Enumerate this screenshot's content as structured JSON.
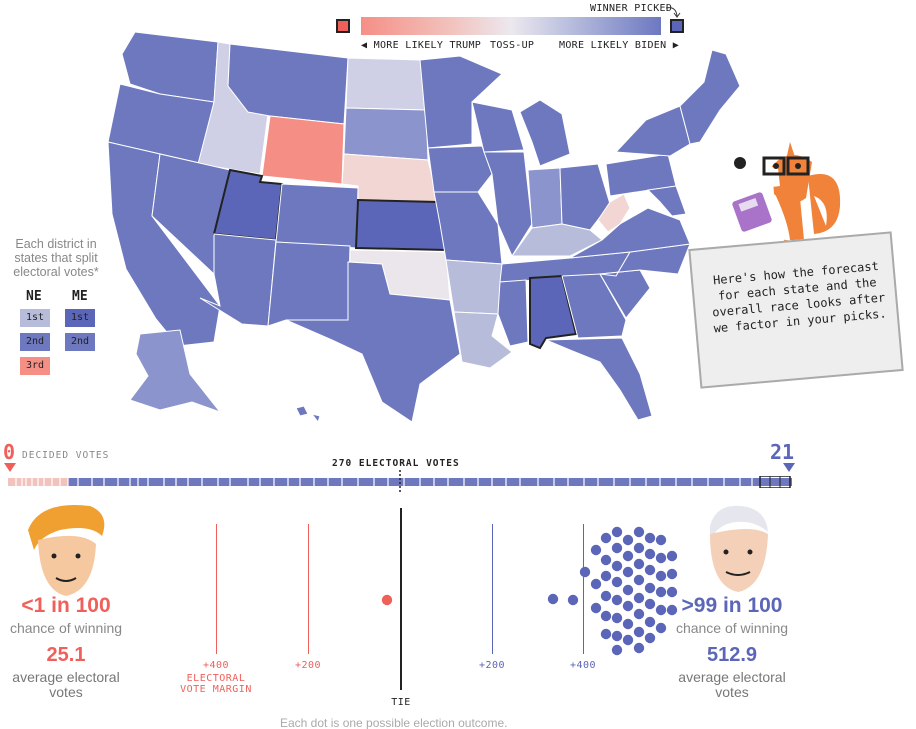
{
  "legend": {
    "winner_picked": "WINNER PICKED",
    "more_likely_trump": "MORE LIKELY TRUMP",
    "toss_up": "TOSS-UP",
    "more_likely_biden": "MORE LIKELY BIDEN",
    "trump_color": "#f0605a",
    "biden_color": "#5b66b8"
  },
  "districts": {
    "title": "Each district in states that split electoral votes*",
    "ne_label": "NE",
    "me_label": "ME",
    "ne": [
      "1st",
      "2nd",
      "3rd"
    ],
    "me": [
      "1st",
      "2nd"
    ]
  },
  "bubble": {
    "text": "Here's how the forecast for each state and the overall race looks after we factor in your picks."
  },
  "decided": {
    "trump_decided": "0",
    "biden_decided": "21",
    "label": "DECIDED VOTES",
    "threshold_label": "270 ELECTORAL VOTES"
  },
  "trump": {
    "chance": "<1 in 100",
    "chance_label": "chance of winning",
    "avg_ev": "25.1",
    "avg_ev_label": "average electoral votes"
  },
  "biden": {
    "chance": ">99 in 100",
    "chance_label": "chance of winning",
    "avg_ev": "512.9",
    "avg_ev_label": "average electoral votes"
  },
  "margin_axis": {
    "left_400": "+400",
    "left_200": "+200",
    "right_200": "+200",
    "right_400": "+400",
    "margin_label_1": "ELECTORAL",
    "margin_label_2": "VOTE MARGIN",
    "tie": "TIE"
  },
  "footer": "Each dot is one possible election outcome."
}
